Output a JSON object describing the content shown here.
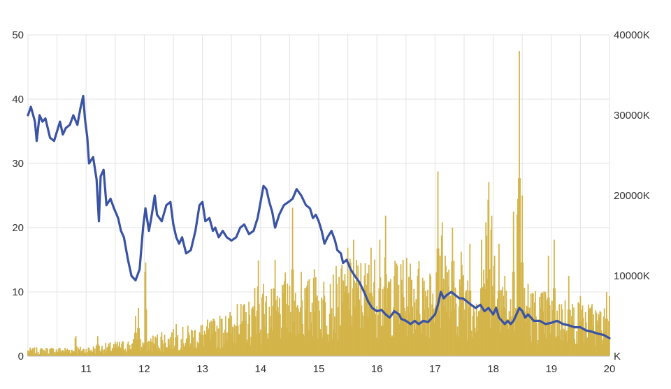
{
  "chart_data": {
    "type": "line+bar",
    "x_ticks": [
      11,
      12,
      13,
      14,
      15,
      16,
      17,
      18,
      19,
      20
    ],
    "x_range": [
      10.0,
      20.0
    ],
    "y_left": {
      "range": [
        0,
        50
      ],
      "ticks": [
        0,
        10,
        20,
        30,
        40,
        50
      ],
      "labels": [
        "0",
        "10",
        "20",
        "30",
        "40",
        "50"
      ]
    },
    "y_right": {
      "range": [
        0,
        40000
      ],
      "ticks": [
        10000,
        20000,
        30000,
        40000
      ],
      "labels": [
        "10000K",
        "20000K",
        "30000K",
        "40000K"
      ],
      "zero_label": "K"
    },
    "grid": true,
    "series": [
      {
        "kind": "line",
        "axis": "left",
        "color": "#3a53a4",
        "points": [
          [
            10.0,
            37.5
          ],
          [
            10.05,
            38.8
          ],
          [
            10.12,
            36.5
          ],
          [
            10.15,
            33.5
          ],
          [
            10.2,
            37.5
          ],
          [
            10.25,
            36.5
          ],
          [
            10.3,
            37.0
          ],
          [
            10.38,
            34.0
          ],
          [
            10.45,
            33.5
          ],
          [
            10.5,
            35.0
          ],
          [
            10.55,
            36.5
          ],
          [
            10.6,
            34.5
          ],
          [
            10.65,
            35.5
          ],
          [
            10.72,
            36.0
          ],
          [
            10.78,
            37.5
          ],
          [
            10.85,
            36.0
          ],
          [
            10.9,
            38.5
          ],
          [
            10.95,
            40.5
          ],
          [
            10.98,
            37.0
          ],
          [
            11.02,
            34.0
          ],
          [
            11.05,
            30.0
          ],
          [
            11.12,
            31.0
          ],
          [
            11.18,
            27.5
          ],
          [
            11.22,
            21.0
          ],
          [
            11.25,
            28.0
          ],
          [
            11.3,
            29.0
          ],
          [
            11.35,
            23.5
          ],
          [
            11.42,
            24.5
          ],
          [
            11.48,
            23.0
          ],
          [
            11.55,
            21.5
          ],
          [
            11.6,
            19.5
          ],
          [
            11.65,
            18.5
          ],
          [
            11.72,
            15.0
          ],
          [
            11.78,
            12.5
          ],
          [
            11.85,
            11.8
          ],
          [
            11.92,
            13.5
          ],
          [
            11.98,
            20.0
          ],
          [
            12.02,
            23.0
          ],
          [
            12.08,
            19.5
          ],
          [
            12.12,
            21.5
          ],
          [
            12.18,
            25.0
          ],
          [
            12.22,
            22.0
          ],
          [
            12.3,
            21.0
          ],
          [
            12.38,
            23.5
          ],
          [
            12.45,
            24.0
          ],
          [
            12.5,
            20.5
          ],
          [
            12.55,
            18.5
          ],
          [
            12.6,
            17.5
          ],
          [
            12.65,
            18.5
          ],
          [
            12.72,
            16.0
          ],
          [
            12.8,
            16.5
          ],
          [
            12.88,
            19.5
          ],
          [
            12.95,
            23.5
          ],
          [
            13.0,
            24.0
          ],
          [
            13.05,
            21.0
          ],
          [
            13.12,
            21.5
          ],
          [
            13.18,
            19.5
          ],
          [
            13.22,
            20.0
          ],
          [
            13.28,
            18.5
          ],
          [
            13.35,
            19.5
          ],
          [
            13.42,
            18.5
          ],
          [
            13.5,
            18.0
          ],
          [
            13.58,
            18.5
          ],
          [
            13.65,
            20.0
          ],
          [
            13.72,
            20.5
          ],
          [
            13.8,
            19.0
          ],
          [
            13.88,
            19.5
          ],
          [
            13.95,
            21.5
          ],
          [
            14.0,
            24.0
          ],
          [
            14.05,
            26.5
          ],
          [
            14.1,
            26.0
          ],
          [
            14.15,
            24.0
          ],
          [
            14.2,
            22.5
          ],
          [
            14.25,
            20.0
          ],
          [
            14.32,
            22.0
          ],
          [
            14.4,
            23.5
          ],
          [
            14.48,
            24.0
          ],
          [
            14.55,
            24.5
          ],
          [
            14.62,
            26.0
          ],
          [
            14.7,
            25.0
          ],
          [
            14.78,
            23.5
          ],
          [
            14.85,
            23.0
          ],
          [
            14.9,
            21.5
          ],
          [
            14.95,
            22.0
          ],
          [
            15.0,
            21.0
          ],
          [
            15.05,
            19.5
          ],
          [
            15.1,
            17.5
          ],
          [
            15.15,
            18.5
          ],
          [
            15.22,
            19.5
          ],
          [
            15.28,
            18.0
          ],
          [
            15.32,
            16.5
          ],
          [
            15.38,
            16.0
          ],
          [
            15.42,
            14.5
          ],
          [
            15.48,
            15.0
          ],
          [
            15.55,
            13.5
          ],
          [
            15.62,
            12.5
          ],
          [
            15.7,
            11.5
          ],
          [
            15.78,
            10.0
          ],
          [
            15.85,
            8.5
          ],
          [
            15.92,
            7.5
          ],
          [
            16.0,
            7.0
          ],
          [
            16.08,
            7.2
          ],
          [
            16.15,
            6.5
          ],
          [
            16.22,
            6.0
          ],
          [
            16.3,
            7.0
          ],
          [
            16.38,
            6.5
          ],
          [
            16.42,
            5.8
          ],
          [
            16.5,
            5.5
          ],
          [
            16.58,
            5.0
          ],
          [
            16.65,
            5.5
          ],
          [
            16.72,
            5.0
          ],
          [
            16.8,
            5.5
          ],
          [
            16.88,
            5.3
          ],
          [
            16.95,
            6.0
          ],
          [
            17.0,
            6.5
          ],
          [
            17.05,
            8.0
          ],
          [
            17.1,
            10.0
          ],
          [
            17.15,
            9.0
          ],
          [
            17.2,
            9.5
          ],
          [
            17.28,
            10.0
          ],
          [
            17.35,
            9.5
          ],
          [
            17.42,
            9.0
          ],
          [
            17.48,
            9.0
          ],
          [
            17.55,
            8.5
          ],
          [
            17.62,
            8.0
          ],
          [
            17.7,
            7.5
          ],
          [
            17.78,
            8.0
          ],
          [
            17.85,
            7.0
          ],
          [
            17.92,
            7.5
          ],
          [
            18.0,
            6.5
          ],
          [
            18.05,
            7.5
          ],
          [
            18.1,
            6.0
          ],
          [
            18.15,
            5.5
          ],
          [
            18.2,
            5.0
          ],
          [
            18.25,
            5.5
          ],
          [
            18.3,
            5.0
          ],
          [
            18.35,
            5.5
          ],
          [
            18.4,
            6.5
          ],
          [
            18.45,
            7.5
          ],
          [
            18.5,
            7.0
          ],
          [
            18.55,
            6.0
          ],
          [
            18.6,
            6.5
          ],
          [
            18.7,
            5.5
          ],
          [
            18.8,
            5.5
          ],
          [
            18.9,
            5.0
          ],
          [
            19.0,
            5.2
          ],
          [
            19.1,
            5.5
          ],
          [
            19.2,
            5.0
          ],
          [
            19.3,
            4.8
          ],
          [
            19.4,
            4.5
          ],
          [
            19.5,
            4.5
          ],
          [
            19.6,
            4.0
          ],
          [
            19.7,
            3.8
          ],
          [
            19.8,
            3.5
          ],
          [
            19.9,
            3.3
          ],
          [
            20.0,
            2.8
          ]
        ]
      },
      {
        "kind": "bar",
        "axis": "right",
        "color": "#d4b54a",
        "baseline": [
          [
            10.0,
            600
          ],
          [
            11.0,
            700
          ],
          [
            11.6,
            1100
          ],
          [
            12.2,
            1600
          ],
          [
            12.8,
            2200
          ],
          [
            13.2,
            2700
          ],
          [
            13.6,
            3500
          ],
          [
            14.0,
            4500
          ],
          [
            14.6,
            5200
          ],
          [
            15.2,
            6000
          ],
          [
            15.6,
            7000
          ],
          [
            16.0,
            7000
          ],
          [
            16.6,
            6800
          ],
          [
            17.0,
            7500
          ],
          [
            17.6,
            6500
          ],
          [
            18.0,
            6000
          ],
          [
            18.6,
            5000
          ],
          [
            19.0,
            4500
          ],
          [
            19.6,
            3800
          ],
          [
            20.0,
            3500
          ]
        ],
        "spikes": [
          [
            10.82,
            3000
          ],
          [
            11.2,
            2500
          ],
          [
            11.5,
            1800
          ],
          [
            11.85,
            5000
          ],
          [
            11.9,
            6000
          ],
          [
            12.02,
            14000
          ],
          [
            12.3,
            3000
          ],
          [
            12.55,
            4000
          ],
          [
            13.0,
            3500
          ],
          [
            13.4,
            5000
          ],
          [
            13.6,
            6500
          ],
          [
            13.9,
            8500
          ],
          [
            13.96,
            13000
          ],
          [
            14.05,
            9000
          ],
          [
            14.25,
            12000
          ],
          [
            14.42,
            12500
          ],
          [
            14.55,
            18500
          ],
          [
            14.7,
            10500
          ],
          [
            14.92,
            13000
          ],
          [
            15.2,
            9000
          ],
          [
            15.5,
            13500
          ],
          [
            15.6,
            14500
          ],
          [
            15.65,
            12000
          ],
          [
            15.9,
            13500
          ],
          [
            16.05,
            14500
          ],
          [
            16.15,
            17500
          ],
          [
            16.3,
            10000
          ],
          [
            16.45,
            12000
          ],
          [
            16.55,
            9000
          ],
          [
            16.7,
            10000
          ],
          [
            16.92,
            12000
          ],
          [
            17.05,
            23000
          ],
          [
            17.12,
            20000
          ],
          [
            17.18,
            15000
          ],
          [
            17.3,
            16000
          ],
          [
            17.45,
            13000
          ],
          [
            17.6,
            14000
          ],
          [
            17.8,
            14500
          ],
          [
            17.88,
            20000
          ],
          [
            17.92,
            26000
          ],
          [
            17.97,
            21000
          ],
          [
            18.02,
            15000
          ],
          [
            18.1,
            14000
          ],
          [
            18.2,
            10000
          ],
          [
            18.35,
            18000
          ],
          [
            18.42,
            23500
          ],
          [
            18.45,
            38000
          ],
          [
            18.5,
            20000
          ],
          [
            18.6,
            9000
          ],
          [
            18.95,
            12500
          ],
          [
            19.05,
            14500
          ],
          [
            19.3,
            10000
          ],
          [
            19.5,
            7500
          ],
          [
            19.7,
            6500
          ],
          [
            19.85,
            5500
          ],
          [
            19.95,
            8000
          ],
          [
            20.0,
            7500
          ]
        ]
      }
    ]
  }
}
